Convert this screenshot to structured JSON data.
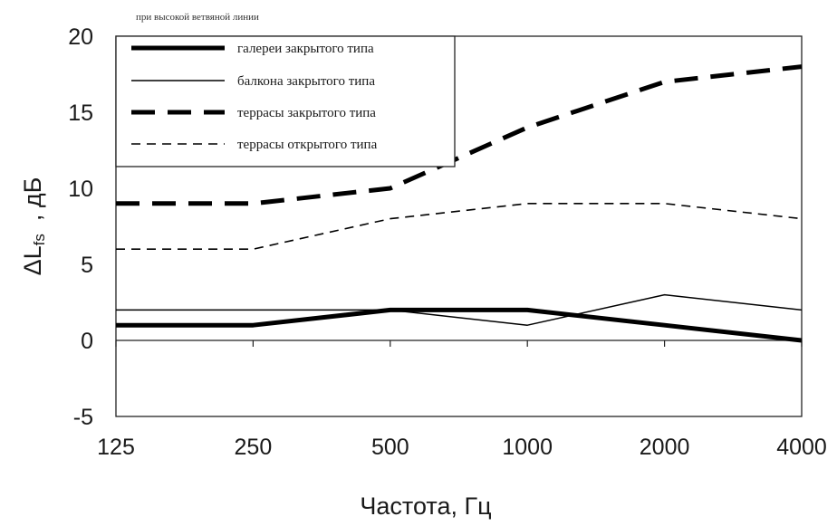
{
  "chart_data": {
    "type": "line",
    "title": "",
    "legend_title": "при высокой ветвяной линии",
    "xlabel": "Частота, Гц",
    "ylabel_main": "ΔL",
    "ylabel_sub": "fs",
    "ylabel_unit": ", дБ",
    "categories": [
      "125",
      "250",
      "500",
      "1000",
      "2000",
      "4000"
    ],
    "ylim": [
      -5,
      20
    ],
    "yticks": [
      "20",
      "15",
      "10",
      "5",
      "0",
      "-5"
    ],
    "grid": false,
    "legend_position": "top-left",
    "series": [
      {
        "name": "галереи закрытого типа",
        "values": [
          1,
          1,
          2,
          2,
          1,
          0
        ],
        "style": "thick-solid",
        "color": "#000000"
      },
      {
        "name": "балкона закрытого типа",
        "values": [
          2,
          2,
          2,
          1,
          3,
          2
        ],
        "style": "thin-solid",
        "color": "#000000"
      },
      {
        "name": "террасы закрытого типа",
        "values": [
          9,
          9,
          10,
          14,
          17,
          18
        ],
        "style": "thick-dashed",
        "color": "#000000"
      },
      {
        "name": "террасы открытого типа",
        "values": [
          6,
          6,
          8,
          9,
          9,
          8
        ],
        "style": "thin-dashed",
        "color": "#000000"
      }
    ]
  }
}
